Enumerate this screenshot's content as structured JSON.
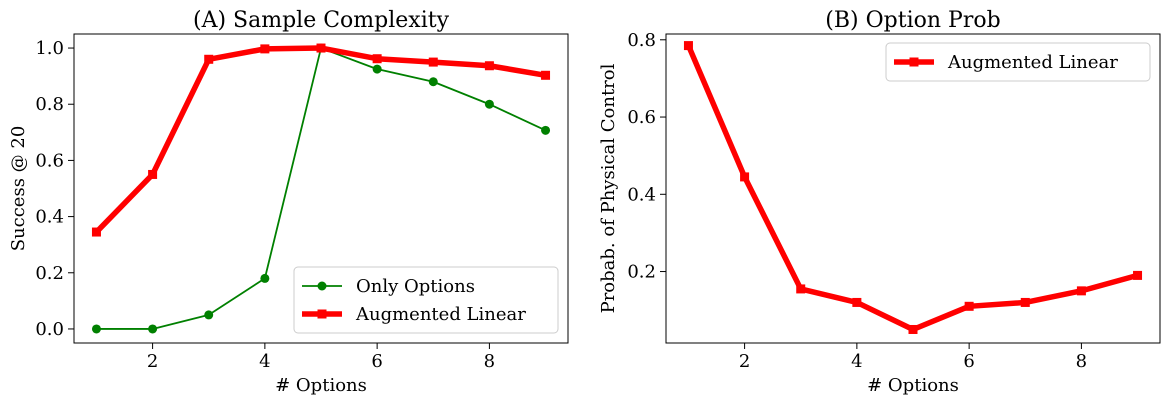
{
  "chart_data": [
    {
      "type": "line",
      "title": "(A) Sample Complexity",
      "xlabel": "# Options",
      "ylabel": "Success @ 20",
      "xlim": [
        0.6,
        9.4
      ],
      "ylim": [
        -0.05,
        1.05
      ],
      "xticks": [
        2,
        4,
        6,
        8
      ],
      "yticks": [
        0.0,
        0.2,
        0.4,
        0.6,
        0.8,
        1.0
      ],
      "ytick_labels": [
        "0.0",
        "0.2",
        "0.4",
        "0.6",
        "0.8",
        "1.0"
      ],
      "grid": false,
      "legend_position": "lower-right",
      "x": [
        1,
        2,
        3,
        4,
        5,
        6,
        7,
        8,
        9
      ],
      "series": [
        {
          "name": "Only Options",
          "color": "#008000",
          "marker": "circle",
          "values": [
            0.0,
            0.0,
            0.05,
            0.18,
            1.0,
            0.925,
            0.88,
            0.8,
            0.707
          ]
        },
        {
          "name": "Augmented Linear",
          "color": "#ff0000",
          "marker": "square",
          "values": [
            0.345,
            0.55,
            0.96,
            0.997,
            1.0,
            0.962,
            0.95,
            0.937,
            0.903
          ]
        }
      ]
    },
    {
      "type": "line",
      "title": "(B) Option Prob",
      "xlabel": "# Options",
      "ylabel": "Probab. of Physical Control",
      "xlim": [
        0.6,
        9.4
      ],
      "ylim": [
        0.015,
        0.815
      ],
      "xticks": [
        2,
        4,
        6,
        8
      ],
      "yticks": [
        0.2,
        0.4,
        0.6,
        0.8
      ],
      "ytick_labels": [
        "0.2",
        "0.4",
        "0.6",
        "0.8"
      ],
      "grid": false,
      "legend_position": "upper-right",
      "x": [
        1,
        2,
        3,
        4,
        5,
        6,
        7,
        8,
        9
      ],
      "series": [
        {
          "name": "Augmented Linear",
          "color": "#ff0000",
          "marker": "square",
          "values": [
            0.785,
            0.445,
            0.155,
            0.12,
            0.05,
            0.11,
            0.12,
            0.15,
            0.19
          ]
        }
      ]
    }
  ]
}
